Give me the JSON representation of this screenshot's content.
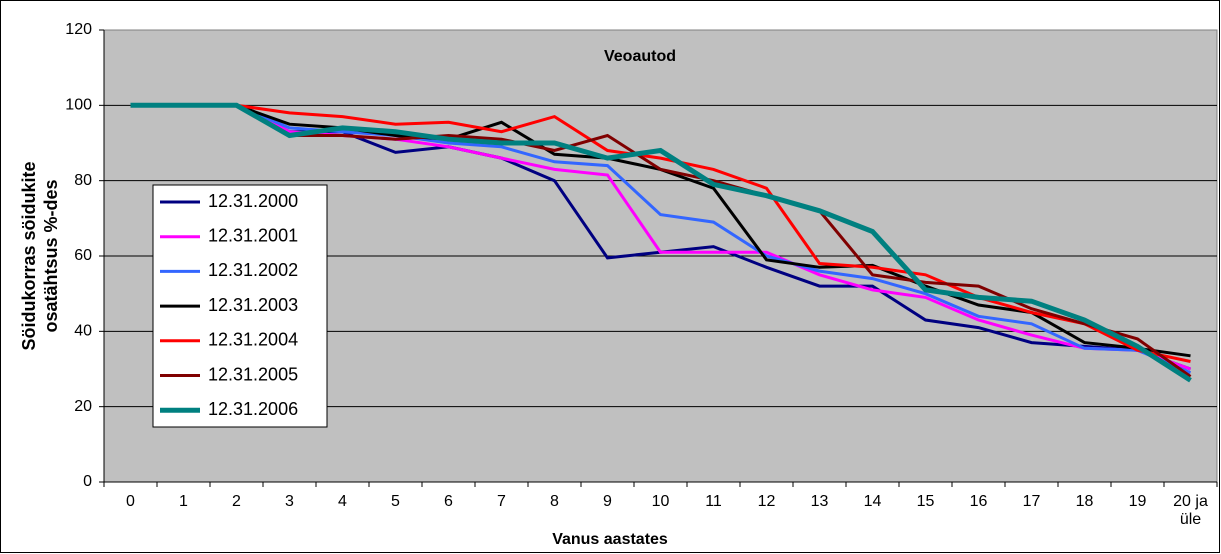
{
  "chart_data": {
    "type": "line",
    "title": "Veoautod",
    "xlabel": "Vanus aastates",
    "ylabel": "Söidukorras söidukite osatähtsus %-des",
    "categories": [
      "0",
      "1",
      "2",
      "3",
      "4",
      "5",
      "6",
      "7",
      "8",
      "9",
      "10",
      "11",
      "12",
      "13",
      "14",
      "15",
      "16",
      "17",
      "18",
      "19",
      "20 ja üle"
    ],
    "ylim": [
      0,
      120
    ],
    "yticks": [
      0,
      20,
      40,
      60,
      80,
      100,
      120
    ],
    "grid": true,
    "legend": "left",
    "series": [
      {
        "name": "12.31.2000",
        "color": "#000080",
        "values": [
          100,
          100,
          100,
          93,
          93,
          87.5,
          89,
          86,
          80,
          59.5,
          61,
          62.5,
          57,
          52,
          52,
          43,
          41,
          37,
          36,
          35,
          30
        ]
      },
      {
        "name": "12.31.2001",
        "color": "#ff00ff",
        "values": [
          100,
          100,
          100,
          93,
          92,
          91,
          89,
          86,
          83,
          81.5,
          61,
          61,
          61,
          55,
          51,
          49,
          43,
          39,
          35.5,
          35,
          30
        ]
      },
      {
        "name": "12.31.2002",
        "color": "#3366ff",
        "values": [
          100,
          100,
          100,
          94,
          93,
          92,
          90,
          89,
          85,
          84,
          71,
          69,
          60,
          56,
          54,
          50,
          44,
          42,
          35.5,
          35,
          29
        ]
      },
      {
        "name": "12.31.2003",
        "color": "#000000",
        "values": [
          100,
          100,
          100,
          95,
          94,
          92,
          91,
          95.5,
          87,
          86,
          83,
          78,
          59,
          57,
          57.5,
          52,
          47,
          45,
          37,
          35.5,
          33.5
        ]
      },
      {
        "name": "12.31.2004",
        "color": "#ff0000",
        "values": [
          100,
          100,
          100,
          98,
          97,
          95,
          95.5,
          93,
          97,
          88,
          86,
          83,
          78,
          58,
          57,
          55,
          49,
          45,
          42,
          35,
          32
        ]
      },
      {
        "name": "12.31.2005",
        "color": "#800000",
        "values": [
          100,
          100,
          100,
          92,
          92,
          91,
          92,
          91,
          88,
          92,
          83,
          80,
          76,
          72,
          55,
          53,
          52,
          46,
          42,
          38,
          28
        ]
      },
      {
        "name": "12.31.2006",
        "color": "#008080",
        "values": [
          100,
          100,
          100,
          92,
          94,
          93,
          91,
          90,
          90,
          86,
          88,
          79,
          76,
          72,
          66.5,
          51,
          49,
          48,
          43,
          36,
          27
        ]
      }
    ]
  }
}
